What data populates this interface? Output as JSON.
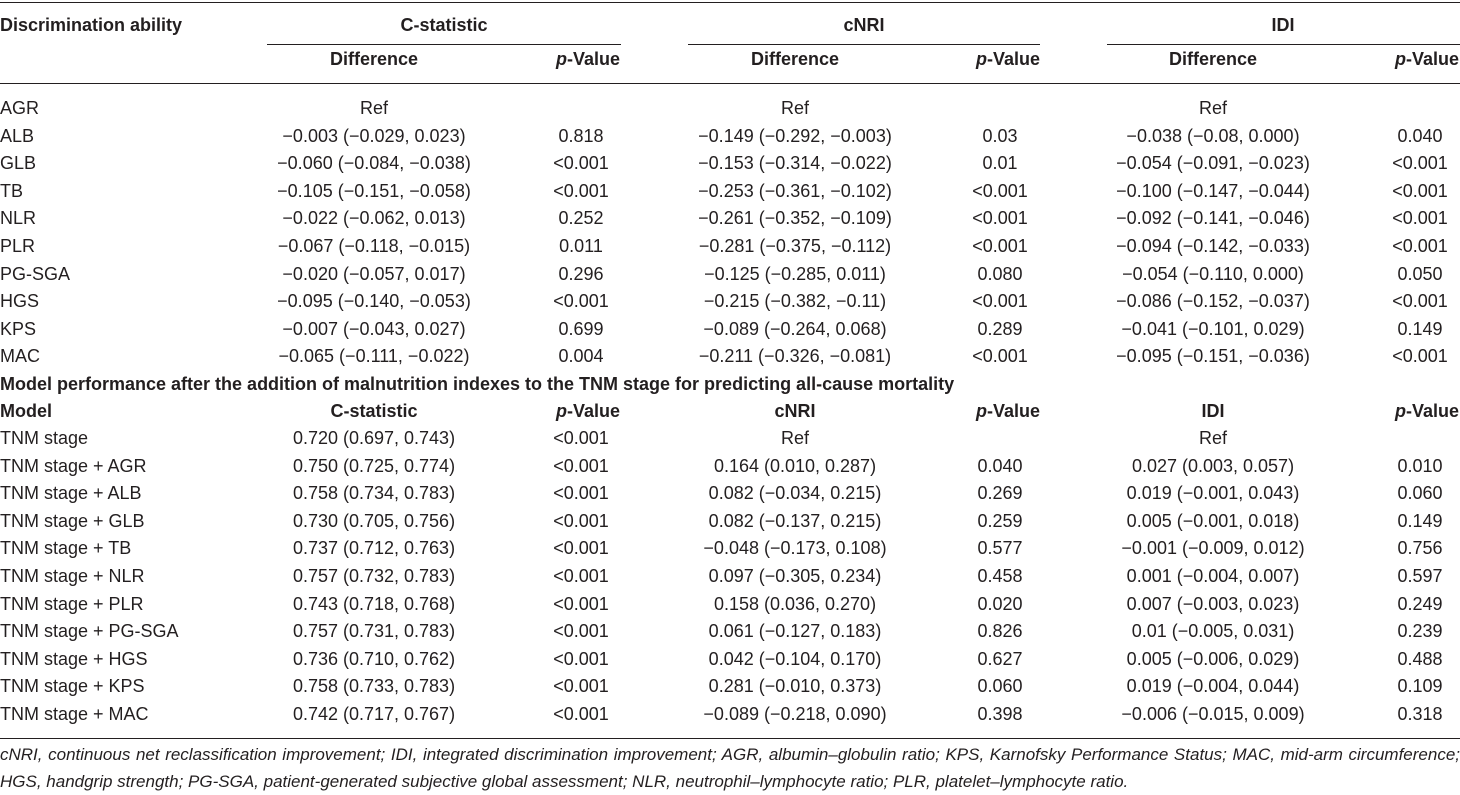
{
  "header": {
    "section": "Discrimination ability",
    "groups": [
      "C-statistic",
      "cNRI",
      "IDI"
    ],
    "difference": "Difference",
    "p_italic": "p",
    "p_rest": "-Value"
  },
  "section1_rows": [
    {
      "name": "AGR",
      "c_diff": "Ref",
      "c_p": "",
      "n_diff": "Ref",
      "n_p": "",
      "i_diff": "Ref",
      "i_p": ""
    },
    {
      "name": "ALB",
      "c_diff": "−0.003 (−0.029, 0.023)",
      "c_p": "0.818",
      "n_diff": "−0.149 (−0.292, −0.003)",
      "n_p": "0.03",
      "i_diff": "−0.038 (−0.08, 0.000)",
      "i_p": "0.040"
    },
    {
      "name": "GLB",
      "c_diff": "−0.060 (−0.084, −0.038)",
      "c_p": "<0.001",
      "n_diff": "−0.153 (−0.314, −0.022)",
      "n_p": "0.01",
      "i_diff": "−0.054 (−0.091, −0.023)",
      "i_p": "<0.001"
    },
    {
      "name": "TB",
      "c_diff": "−0.105 (−0.151, −0.058)",
      "c_p": "<0.001",
      "n_diff": "−0.253 (−0.361, −0.102)",
      "n_p": "<0.001",
      "i_diff": "−0.100 (−0.147, −0.044)",
      "i_p": "<0.001"
    },
    {
      "name": "NLR",
      "c_diff": "−0.022 (−0.062, 0.013)",
      "c_p": "0.252",
      "n_diff": "−0.261 (−0.352, −0.109)",
      "n_p": "<0.001",
      "i_diff": "−0.092 (−0.141, −0.046)",
      "i_p": "<0.001"
    },
    {
      "name": "PLR",
      "c_diff": "−0.067 (−0.118, −0.015)",
      "c_p": "0.011",
      "n_diff": "−0.281 (−0.375, −0.112)",
      "n_p": "<0.001",
      "i_diff": "−0.094 (−0.142, −0.033)",
      "i_p": "<0.001"
    },
    {
      "name": "PG-SGA",
      "c_diff": "−0.020 (−0.057, 0.017)",
      "c_p": "0.296",
      "n_diff": "−0.125 (−0.285, 0.011)",
      "n_p": "0.080",
      "i_diff": "−0.054 (−0.110, 0.000)",
      "i_p": "0.050"
    },
    {
      "name": "HGS",
      "c_diff": "−0.095 (−0.140, −0.053)",
      "c_p": "<0.001",
      "n_diff": "−0.215 (−0.382, −0.11)",
      "n_p": "<0.001",
      "i_diff": "−0.086 (−0.152, −0.037)",
      "i_p": "<0.001"
    },
    {
      "name": "KPS",
      "c_diff": "−0.007 (−0.043, 0.027)",
      "c_p": "0.699",
      "n_diff": "−0.089 (−0.264, 0.068)",
      "n_p": "0.289",
      "i_diff": "−0.041 (−0.101, 0.029)",
      "i_p": "0.149"
    },
    {
      "name": "MAC",
      "c_diff": "−0.065 (−0.111, −0.022)",
      "c_p": "0.004",
      "n_diff": "−0.211 (−0.326, −0.081)",
      "n_p": "<0.001",
      "i_diff": "−0.095 (−0.151, −0.036)",
      "i_p": "<0.001"
    }
  ],
  "section2_title": "Model performance after the addition of malnutrition indexes to the TNM stage for predicting all-cause mortality",
  "section2_header": {
    "model": "Model",
    "cstat": "C-statistic",
    "cnri": "cNRI",
    "idi": "IDI"
  },
  "section2_rows": [
    {
      "name": "TNM stage",
      "c_diff": "0.720 (0.697, 0.743)",
      "c_p": "<0.001",
      "n_diff": "Ref",
      "n_p": "",
      "i_diff": "Ref",
      "i_p": ""
    },
    {
      "name": "TNM stage + AGR",
      "c_diff": "0.750 (0.725, 0.774)",
      "c_p": "<0.001",
      "n_diff": "0.164 (0.010, 0.287)",
      "n_p": "0.040",
      "i_diff": "0.027 (0.003, 0.057)",
      "i_p": "0.010"
    },
    {
      "name": "TNM stage + ALB",
      "c_diff": "0.758 (0.734, 0.783)",
      "c_p": "<0.001",
      "n_diff": "0.082 (−0.034, 0.215)",
      "n_p": "0.269",
      "i_diff": "0.019 (−0.001, 0.043)",
      "i_p": "0.060"
    },
    {
      "name": "TNM stage + GLB",
      "c_diff": "0.730 (0.705, 0.756)",
      "c_p": "<0.001",
      "n_diff": "0.082 (−0.137, 0.215)",
      "n_p": "0.259",
      "i_diff": "0.005 (−0.001, 0.018)",
      "i_p": "0.149"
    },
    {
      "name": "TNM stage + TB",
      "c_diff": "0.737 (0.712, 0.763)",
      "c_p": "<0.001",
      "n_diff": "−0.048 (−0.173, 0.108)",
      "n_p": "0.577",
      "i_diff": "−0.001 (−0.009, 0.012)",
      "i_p": "0.756"
    },
    {
      "name": "TNM stage + NLR",
      "c_diff": "0.757 (0.732, 0.783)",
      "c_p": "<0.001",
      "n_diff": "0.097 (−0.305, 0.234)",
      "n_p": "0.458",
      "i_diff": "0.001 (−0.004, 0.007)",
      "i_p": "0.597"
    },
    {
      "name": "TNM stage + PLR",
      "c_diff": "0.743 (0.718, 0.768)",
      "c_p": "<0.001",
      "n_diff": "0.158 (0.036, 0.270)",
      "n_p": "0.020",
      "i_diff": "0.007 (−0.003, 0.023)",
      "i_p": "0.249"
    },
    {
      "name": "TNM stage + PG-SGA",
      "c_diff": "0.757 (0.731, 0.783)",
      "c_p": "<0.001",
      "n_diff": "0.061 (−0.127, 0.183)",
      "n_p": "0.826",
      "i_diff": "0.01 (−0.005, 0.031)",
      "i_p": "0.239"
    },
    {
      "name": "TNM stage + HGS",
      "c_diff": "0.736 (0.710, 0.762)",
      "c_p": "<0.001",
      "n_diff": "0.042 (−0.104, 0.170)",
      "n_p": "0.627",
      "i_diff": "0.005 (−0.006, 0.029)",
      "i_p": "0.488"
    },
    {
      "name": "TNM stage + KPS",
      "c_diff": "0.758 (0.733, 0.783)",
      "c_p": "<0.001",
      "n_diff": "0.281 (−0.010, 0.373)",
      "n_p": "0.060",
      "i_diff": "0.019 (−0.004, 0.044)",
      "i_p": "0.109"
    },
    {
      "name": "TNM stage + MAC",
      "c_diff": "0.742 (0.717, 0.767)",
      "c_p": "<0.001",
      "n_diff": "−0.089 (−0.218, 0.090)",
      "n_p": "0.398",
      "i_diff": "−0.006 (−0.015, 0.009)",
      "i_p": "0.318"
    }
  ],
  "footnote": "cNRI, continuous net reclassification improvement; IDI, integrated discrimination improvement; AGR, albumin–globulin ratio; KPS, Karnofsky Performance Status; MAC, mid-arm circumference; HGS, handgrip strength; PG-SGA, patient-generated subjective global assessment; NLR, neutrophil–lymphocyte ratio; PLR, platelet–lymphocyte ratio."
}
